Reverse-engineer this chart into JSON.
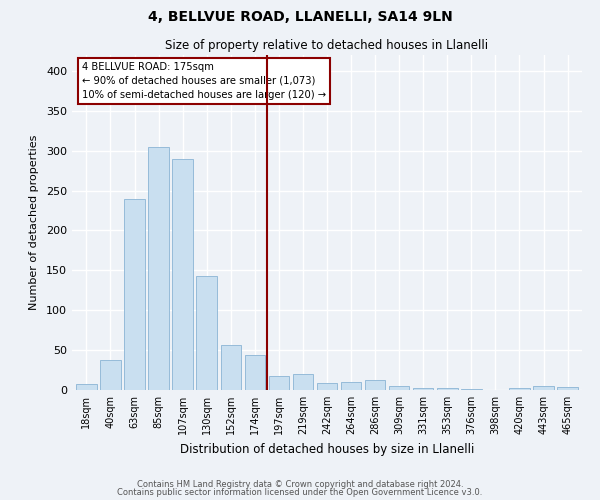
{
  "title1": "4, BELLVUE ROAD, LLANELLI, SA14 9LN",
  "title2": "Size of property relative to detached houses in Llanelli",
  "xlabel": "Distribution of detached houses by size in Llanelli",
  "ylabel": "Number of detached properties",
  "bar_labels": [
    "18sqm",
    "40sqm",
    "63sqm",
    "85sqm",
    "107sqm",
    "130sqm",
    "152sqm",
    "174sqm",
    "197sqm",
    "219sqm",
    "242sqm",
    "264sqm",
    "286sqm",
    "309sqm",
    "331sqm",
    "353sqm",
    "376sqm",
    "398sqm",
    "420sqm",
    "443sqm",
    "465sqm"
  ],
  "bar_values": [
    8,
    38,
    240,
    305,
    290,
    143,
    56,
    44,
    17,
    20,
    9,
    10,
    12,
    5,
    3,
    2,
    1,
    0,
    2,
    5,
    4
  ],
  "bar_color": "#c9dff0",
  "bar_edge_color": "#8ab4d4",
  "bg_color": "#eef2f7",
  "grid_color": "#ffffff",
  "vline_index": 7,
  "annotation_title": "4 BELLVUE ROAD: 175sqm",
  "annotation_line1": "← 90% of detached houses are smaller (1,073)",
  "annotation_line2": "10% of semi-detached houses are larger (120) →",
  "footer1": "Contains HM Land Registry data © Crown copyright and database right 2024.",
  "footer2": "Contains public sector information licensed under the Open Government Licence v3.0.",
  "ylim": [
    0,
    420
  ],
  "yticks": [
    0,
    50,
    100,
    150,
    200,
    250,
    300,
    350,
    400
  ]
}
